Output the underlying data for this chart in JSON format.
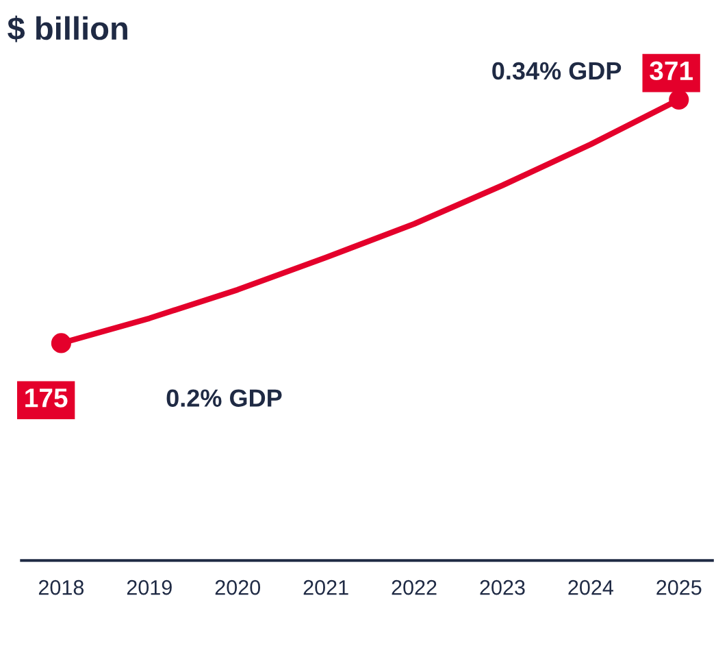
{
  "chart_data": {
    "type": "line",
    "title": "$ billion",
    "categories": [
      "2018",
      "2019",
      "2020",
      "2021",
      "2022",
      "2023",
      "2024",
      "2025"
    ],
    "series": [
      {
        "color": "#e4002b",
        "values": [
          175,
          195,
          218,
          244,
          271,
          302,
          335,
          371
        ],
        "marker": "none"
      },
      {
        "type": "scatter",
        "color": "#e4002b",
        "values": [
          175,
          null,
          null,
          null,
          null,
          null,
          null,
          371
        ],
        "marker": "circle",
        "value_labels": [
          "175",
          null,
          null,
          null,
          null,
          null,
          null,
          "371"
        ]
      }
    ],
    "annotations": [
      "0.2% GDP",
      "0.34% GDP"
    ],
    "tick_labels": "x",
    "grid": false,
    "legend": false
  }
}
